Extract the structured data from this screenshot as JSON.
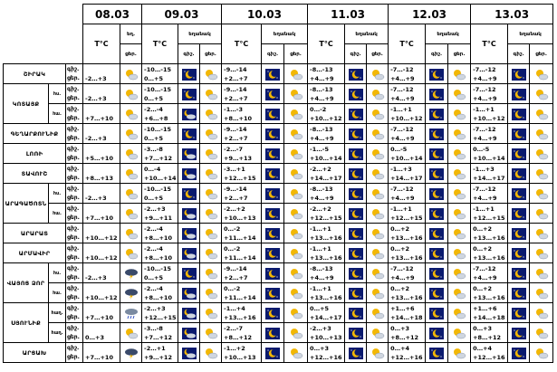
{
  "header": {
    "dates": [
      "08.03",
      "09.03",
      "10.03",
      "11.03",
      "12.03",
      "13.03"
    ],
    "temp_label": "T°C",
    "weather_label": "եղանակ",
    "weather_label_short": "եղ.",
    "day_label": "ցեր.",
    "night_label": "գիշ."
  },
  "period_labels": {
    "night": "գիշ.",
    "day": "ցեր."
  },
  "sub_labels": {
    "low": "հս.",
    "mid": "հա.",
    "hl": "հաղ."
  },
  "regions": [
    {
      "name": "ՇԻՐԱԿ",
      "rows": [
        {
          "sub": "",
          "t0": "-2…+3",
          "t1n": "-10…-15",
          "t1d": "0…+5",
          "t2n": "-9…-14",
          "t2d": "+2…+7",
          "t3n": "-8…-13",
          "t3d": "+4…+9",
          "t4n": "-7…-12",
          "t4d": "+4…+9",
          "t5n": "-7…-12",
          "t5d": "+4…+9",
          "w0": "partly",
          "w1": "night-sun",
          "w2": "night-sun",
          "w3": "night-sun",
          "w4": "night-sun",
          "w5": "night-sun"
        }
      ]
    },
    {
      "name": "ԿՈՏԱՅՔ",
      "rows": [
        {
          "sub": "հս.",
          "t0": "-2…+3",
          "t1n": "-10…-15",
          "t1d": "0…+5",
          "t2n": "-9…-14",
          "t2d": "+2…+7",
          "t3n": "-8…-13",
          "t3d": "+4…+9",
          "t4n": "-7…-12",
          "t4d": "+4…+9",
          "t5n": "-7…-12",
          "t5d": "+4…+9",
          "w0": "partly",
          "w1": "night-sun",
          "w2": "night-sun",
          "w3": "night-sun",
          "w4": "night-sun",
          "w5": "night-sun"
        },
        {
          "sub": "հա.",
          "t0": "+7…+10",
          "t1n": "-2…-4",
          "t1d": "+6…+8",
          "t2n": "-1…-3",
          "t2d": "+8…+10",
          "t3n": "0…-2",
          "t3d": "+10…+12",
          "t4n": "-1…+1",
          "t4d": "+10…+12",
          "t5n": "-1…+1",
          "t5d": "+10…+12",
          "w0": "partly",
          "w1": "night-cloud",
          "w2": "night-sun",
          "w3": "night-sun",
          "w4": "night-sun",
          "w5": "night-sun"
        }
      ]
    },
    {
      "name": "ԳԵՂԱՐՔՈՒՆԻՔ",
      "rows": [
        {
          "sub": "",
          "t0": "-2…+3",
          "t1n": "-10…-15",
          "t1d": "0…+5",
          "t2n": "-9…-14",
          "t2d": "+2…+7",
          "t3n": "-8…-13",
          "t3d": "+4…+9",
          "t4n": "-7…-12",
          "t4d": "+4…+9",
          "t5n": "-7…-12",
          "t5d": "+4…+9",
          "w0": "partly",
          "w1": "night-sun",
          "w2": "night-sun",
          "w3": "night-sun",
          "w4": "night-sun",
          "w5": "night-sun"
        }
      ]
    },
    {
      "name": "ԼՈՌԻ",
      "rows": [
        {
          "sub": "",
          "t0": "+5…+10",
          "t1n": "-3…-8",
          "t1d": "+7…+12",
          "t2n": "-2…-7",
          "t2d": "+9…+13",
          "t3n": "-1…-5",
          "t3d": "+10…+14",
          "t4n": "0…-5",
          "t4d": "+10…+14",
          "t5n": "0…-5",
          "t5d": "+10…+14",
          "w0": "partly",
          "w1": "night-cloud",
          "w2": "night-sun",
          "w3": "night-sun",
          "w4": "night-sun",
          "w5": "night-sun"
        }
      ]
    },
    {
      "name": "ՏԱՎՈՒՇ",
      "rows": [
        {
          "sub": "",
          "t0": "+8…+13",
          "t1n": "0…-4",
          "t1d": "+10…+14",
          "t2n": "-3…+1",
          "t2d": "+12…+15",
          "t3n": "-2…+2",
          "t3d": "+14…+17",
          "t4n": "-1…+3",
          "t4d": "+14…+17",
          "t5n": "-1…+3",
          "t5d": "+14…+17",
          "w0": "partly",
          "w1": "night-cloud",
          "w2": "night-sun",
          "w3": "night-sun",
          "w4": "night-sun",
          "w5": "night-sun"
        }
      ]
    },
    {
      "name": "ԱՐԱԳԱԾՈՏՆ",
      "rows": [
        {
          "sub": "հս.",
          "t0": "-2…+3",
          "t1n": "-10…-15",
          "t1d": "0…+5",
          "t2n": "-9…-14",
          "t2d": "+2…+7",
          "t3n": "-8…-13",
          "t3d": "+4…+9",
          "t4n": "-7…-12",
          "t4d": "+4…+9",
          "t5n": "-7…-12",
          "t5d": "+4…+9",
          "w0": "partly",
          "w1": "night-sun",
          "w2": "night-sun",
          "w3": "night-sun",
          "w4": "night-sun",
          "w5": "night-sun"
        },
        {
          "sub": "հա.",
          "t0": "+7…+10",
          "t1n": "-2…+3",
          "t1d": "+9…+11",
          "t2n": "-2…+2",
          "t2d": "+10…+13",
          "t3n": "-2…+2",
          "t3d": "+12…+15",
          "t4n": "-1…+1",
          "t4d": "+12…+15",
          "t5n": "-1…+1",
          "t5d": "+12…+15",
          "w0": "partly",
          "w1": "night-cloud",
          "w2": "night-sun",
          "w3": "night-sun",
          "w4": "night-sun",
          "w5": "night-sun"
        }
      ]
    },
    {
      "name": "ԱՐԱՐԱՏ",
      "rows": [
        {
          "sub": "",
          "t0": "+10…+12",
          "t1n": "-2…-4",
          "t1d": "+8…+10",
          "t2n": "0…-2",
          "t2d": "+11…+14",
          "t3n": "-1…+1",
          "t3d": "+13…+16",
          "t4n": "0…+2",
          "t4d": "+13…+16",
          "t5n": "0…+2",
          "t5d": "+13…+16",
          "w0": "partly",
          "w1": "night-cloud",
          "w2": "night-sun",
          "w3": "night-sun",
          "w4": "night-sun",
          "w5": "night-sun"
        }
      ]
    },
    {
      "name": "ԱՐՄԱՎԻՐ",
      "rows": [
        {
          "sub": "",
          "t0": "+10…+12",
          "t1n": "-2…-4",
          "t1d": "+8…+10",
          "t2n": "0…-2",
          "t2d": "+11…+14",
          "t3n": "-1…+1",
          "t3d": "+13…+16",
          "t4n": "0…+2",
          "t4d": "+13…+16",
          "t5n": "0…+2",
          "t5d": "+13…+16",
          "w0": "partly",
          "w1": "night-cloud",
          "w2": "night-sun",
          "w3": "night-sun",
          "w4": "night-sun",
          "w5": "night-sun"
        }
      ]
    },
    {
      "name": "ՎԱՅՈՑ ՁՈՐ",
      "rows": [
        {
          "sub": "հս.",
          "t0": "-2…+3",
          "t1n": "-10…-15",
          "t1d": "0…+5",
          "t2n": "-9…-14",
          "t2d": "+2…+7",
          "t3n": "-8…-13",
          "t3d": "+4…+9",
          "t4n": "-7…-12",
          "t4d": "+4…+9",
          "t5n": "-7…-12",
          "t5d": "+4…+9",
          "w0": "storm",
          "w1": "night-sun",
          "w2": "night-sun",
          "w3": "night-sun",
          "w4": "night-sun",
          "w5": "night-sun"
        },
        {
          "sub": "հա.",
          "t0": "+10…+12",
          "t1n": "-2…-4",
          "t1d": "+8…+10",
          "t2n": "0…-2",
          "t2d": "+11…+14",
          "t3n": "-1…+1",
          "t3d": "+13…+16",
          "t4n": "0…+2",
          "t4d": "+13…+16",
          "t5n": "0…+2",
          "t5d": "+13…+16",
          "w0": "storm",
          "w1": "night-cloud",
          "w2": "night-sun",
          "w3": "night-sun",
          "w4": "night-sun",
          "w5": "night-sun"
        }
      ]
    },
    {
      "name": "ՍՅՈՒՆԻՔ",
      "rows": [
        {
          "sub": "հաղ.",
          "t0": "+7…+10",
          "t1n": "-2…+3",
          "t1d": "+12…+15",
          "t2n": "-1…+4",
          "t2d": "+13…+16",
          "t3n": "0…+5",
          "t3d": "+14…+17",
          "t4n": "+1…+6",
          "t4d": "+14…+18",
          "t5n": "+1…+6",
          "t5d": "+14…+18",
          "w0": "rain",
          "w1": "night-cloud",
          "w2": "night-sun",
          "w3": "night-sun",
          "w4": "night-sun",
          "w5": "night-sun"
        },
        {
          "sub": "հաղ.",
          "t0": "0…+3",
          "t1n": "-3…-8",
          "t1d": "+7…+12",
          "t2n": "-2…-7",
          "t2d": "+8…+12",
          "t3n": "-2…+3",
          "t3d": "+10…+13",
          "t4n": "0…+3",
          "t4d": "+8…+12",
          "t5n": "0…+3",
          "t5d": "+8…+12",
          "w0": "partly",
          "w1": "night-cloud",
          "w2": "night-sun",
          "w3": "night-sun",
          "w4": "night-sun",
          "w5": "night-sun"
        }
      ]
    },
    {
      "name": "ԱՐՑԱԽ",
      "rows": [
        {
          "sub": "",
          "t0": "+7…+10",
          "t1n": "-2…+1",
          "t1d": "+9…+12",
          "t2n": "-1…+2",
          "t2d": "+10…+13",
          "t3n": "0…+3",
          "t3d": "+12…+16",
          "t4n": "0…+4",
          "t4d": "+12…+16",
          "t5n": "0…+4",
          "t5d": "+12…+16",
          "w0": "storm",
          "w1": "night-cloud",
          "w2": "night-sun",
          "w3": "night-sun",
          "w4": "night-sun",
          "w5": "night-sun"
        }
      ]
    }
  ],
  "icon_names": {
    "partly": "partly-cloudy-icon",
    "night-sun": "moon-sun-icon",
    "night-cloud": "moon-cloud-icon",
    "storm": "storm-cloud-icon",
    "rain": "rain-cloud-icon"
  },
  "colors": {
    "sun": "#f2b705",
    "night": "#0a1a6e",
    "cloud": "#cfd6e0",
    "storm": "#3a4a6a"
  }
}
